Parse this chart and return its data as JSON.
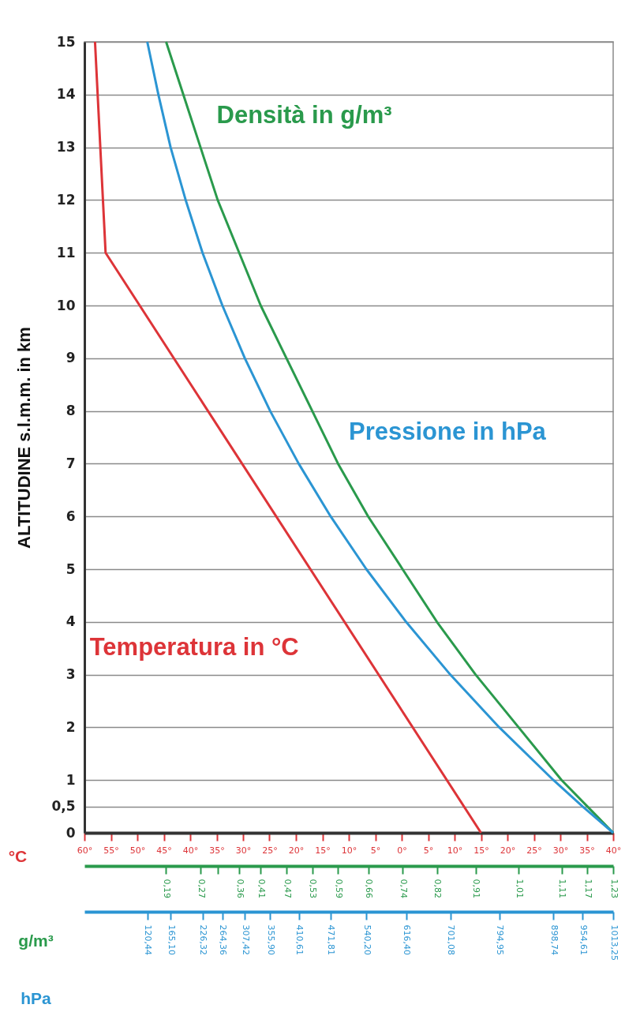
{
  "chart_data": [
    {
      "type": "line",
      "ylabel": "ALTITUDINE s.l.m.m. in km",
      "xlabel": "°C",
      "x2label": "g/m³",
      "ylim": [
        0,
        15
      ],
      "yticks": [
        0,
        {
          "value": 0.5,
          "label": "0,5"
        },
        1,
        2,
        3,
        4,
        5,
        6,
        7,
        8,
        9,
        10,
        11,
        12,
        13,
        14,
        15
      ],
      "xlim": [
        -60,
        40
      ],
      "xticks": [
        {
          "value": -60,
          "label": "60°"
        },
        {
          "value": -55,
          "label": "55°"
        },
        {
          "value": -50,
          "label": "50°"
        },
        {
          "value": -45,
          "label": "45°"
        },
        {
          "value": -40,
          "label": "40°"
        },
        {
          "value": -35,
          "label": "35°"
        },
        {
          "value": -30,
          "label": "30°"
        },
        {
          "value": -25,
          "label": "25°"
        },
        {
          "value": -20,
          "label": "20°"
        },
        {
          "value": -15,
          "label": "15°"
        },
        {
          "value": -10,
          "label": "10°"
        },
        {
          "value": -5,
          "label": "5°"
        },
        {
          "value": 0,
          "label": "0°"
        },
        {
          "value": 5,
          "label": "5°"
        },
        {
          "value": 10,
          "label": "10°"
        },
        {
          "value": 15,
          "label": "15°"
        },
        {
          "value": 20,
          "label": "20°"
        },
        {
          "value": 25,
          "label": "25°"
        },
        {
          "value": 30,
          "label": "30°"
        },
        {
          "value": 35,
          "label": "35°"
        },
        {
          "value": 40,
          "label": "40°"
        }
      ],
      "x2lim": [
        0,
        1.23
      ],
      "x2ticks": [
        {
          "value": 0.19,
          "label": "0,19"
        },
        {
          "value": 0.27,
          "label": "0,27"
        },
        {
          "value": 0.31,
          "label": null
        },
        {
          "value": 0.36,
          "label": "0,36"
        },
        {
          "value": 0.41,
          "label": "0,41"
        },
        {
          "value": 0.47,
          "label": "0,47"
        },
        {
          "value": 0.53,
          "label": "0,53"
        },
        {
          "value": 0.59,
          "label": "0,59"
        },
        {
          "value": 0.66,
          "label": "0,66"
        },
        {
          "value": 0.74,
          "label": "0,74"
        },
        {
          "value": 0.82,
          "label": "0,82"
        },
        {
          "value": 0.91,
          "label": "0,91"
        },
        {
          "value": 1.01,
          "label": "1,01"
        },
        {
          "value": 1.11,
          "label": "1,11"
        },
        {
          "value": 1.17,
          "label": "1,17"
        },
        {
          "value": 1.23,
          "label": "1,23"
        }
      ],
      "grid": "y",
      "series": [
        {
          "name": "Temperatura in °C",
          "color": "#dd3438",
          "x": [
            15,
            -56,
            -58
          ],
          "values": [
            0,
            11,
            15
          ]
        },
        {
          "name": "Densità in g/m³",
          "color": "#2a9a4c",
          "axis": "x2",
          "x": [
            1.23,
            1.17,
            1.11,
            1.01,
            0.91,
            0.82,
            0.74,
            0.66,
            0.59,
            0.53,
            0.47,
            0.41,
            0.36,
            0.31,
            0.27,
            0.23,
            0.19
          ],
          "values": [
            0,
            0.5,
            1,
            2,
            3,
            4,
            5,
            6,
            7,
            8,
            9,
            10,
            11,
            12,
            13,
            14,
            15
          ]
        }
      ]
    },
    {
      "type": "line",
      "xlabel": "hPa",
      "ylim": [
        0,
        15
      ],
      "tick_labels": "x",
      "xlim": [
        0,
        1013.25
      ],
      "xticks": [
        {
          "value": 120.44,
          "label": "120,44"
        },
        {
          "value": 165.1,
          "label": "165,10"
        },
        {
          "value": 226.32,
          "label": "226,32"
        },
        {
          "value": 264.36,
          "label": "264,36"
        },
        {
          "value": 307.42,
          "label": "307,42"
        },
        {
          "value": 355.9,
          "label": "355,90"
        },
        {
          "value": 410.61,
          "label": "410,61"
        },
        {
          "value": 471.81,
          "label": "471,81"
        },
        {
          "value": 540.2,
          "label": "540,20"
        },
        {
          "value": 616.4,
          "label": "616,40"
        },
        {
          "value": 701.08,
          "label": "701,08"
        },
        {
          "value": 794.95,
          "label": "794,95"
        },
        {
          "value": 898.74,
          "label": "898,74"
        },
        {
          "value": 954.61,
          "label": "954,61"
        },
        {
          "value": 1013.25,
          "label": "1013,25"
        }
      ],
      "series": [
        {
          "name": "Pressione in hPa",
          "color": "#2b95d3",
          "x": [
            1013.25,
            954.61,
            898.74,
            794.95,
            701.08,
            616.4,
            540.2,
            471.81,
            410.61,
            355.9,
            307.42,
            264.36,
            226.32,
            193.99,
            165.1,
            141.7,
            120.44
          ],
          "values": [
            0,
            0.5,
            1,
            2,
            3,
            4,
            5,
            6,
            7,
            8,
            9,
            10,
            11,
            12,
            13,
            14,
            15
          ]
        }
      ]
    }
  ]
}
